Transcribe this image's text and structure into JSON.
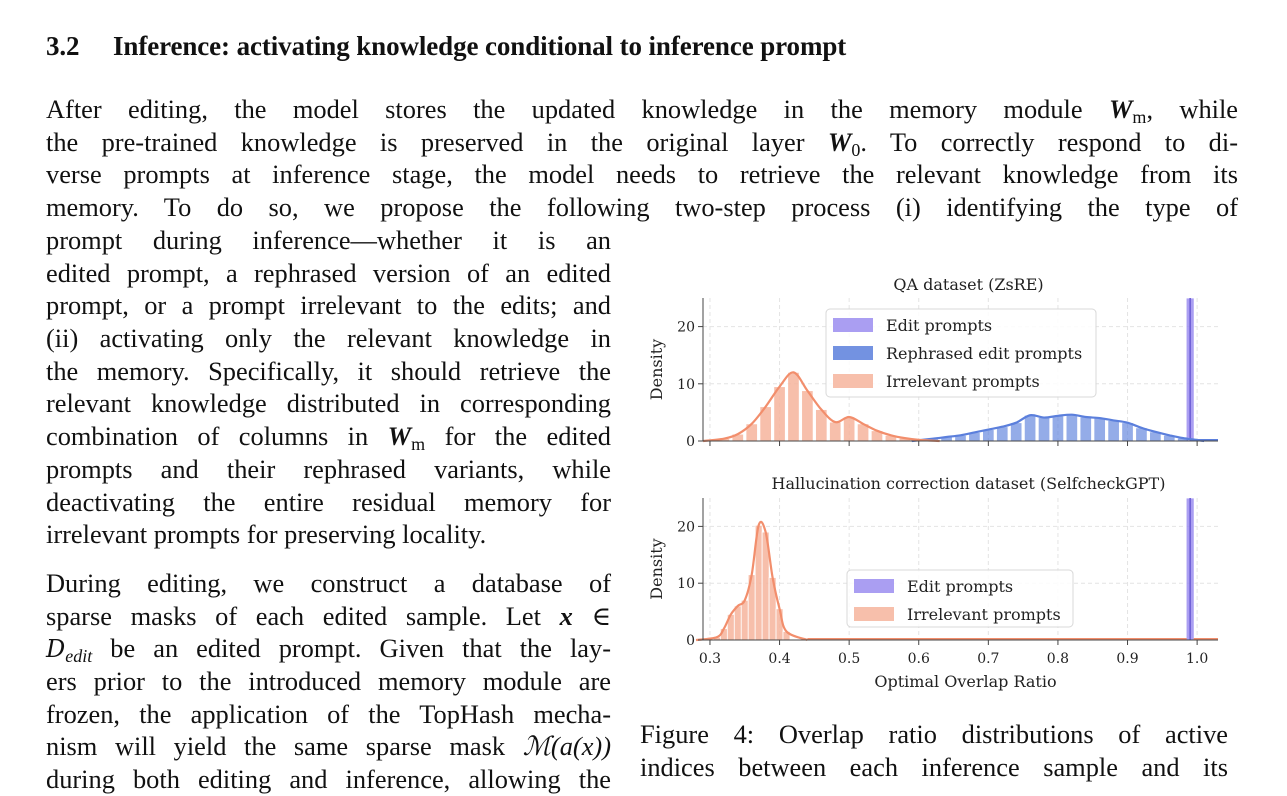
{
  "section": {
    "number": "3.2",
    "title": "Inference: activating knowledge conditional to inference prompt"
  },
  "paragraph1": {
    "l1_a": "After editing, the model stores the updated knowledge in the memory module",
    "l1_sym": "W",
    "l1_sub": "m",
    "l1_b": ", while",
    "l2_a": "the pre-trained knowledge is preserved in the original layer",
    "l2_sym": "W",
    "l2_sub": "0",
    "l2_b": ".  To correctly respond to di-",
    "l3": "verse prompts at inference stage, the model needs to retrieve the relevant knowledge from its",
    "l4": "memory.  To do so, we propose the following two-step process (i) identifying the type of"
  },
  "paragraph2": {
    "l1": "prompt during inference—whether it is an",
    "l2": "edited prompt, a rephrased version of an edited",
    "l3": "prompt, or a prompt irrelevant to the edits; and",
    "l4": "(ii) activating only the relevant knowledge in",
    "l5": "the memory. Specifically, it should retrieve the",
    "l6": "relevant knowledge distributed in corresponding",
    "l7_a": "combination of columns in",
    "l7_sym": "W",
    "l7_sub": "m",
    "l7_b": "for the edited",
    "l8": "prompts and their rephrased variants, while",
    "l9": "deactivating the entire residual memory for",
    "l10": "irrelevant prompts for preserving locality."
  },
  "paragraph3": {
    "l1": "During editing, we construct a database of",
    "l2_a": "sparse masks of each edited sample. Let",
    "l2_sym": "x",
    "l2_in": "∈",
    "l3_sym": "D",
    "l3_sub": "edit",
    "l3_b": "be an edited prompt. Given that the lay-",
    "l4": "ers prior to the introduced memory module are",
    "l5": "frozen, the application of the TopHash mecha-",
    "l6_a": "nism will yield the same sparse mask",
    "l6_math": "ℳ(a(x))",
    "l7": "during both editing and inference, allowing the"
  },
  "caption": {
    "l1": "Figure 4:  Overlap ratio distributions of active",
    "l2": "indices between each inference sample and its"
  },
  "colors": {
    "edit": "#9b8df0",
    "rephrased": "#5b7fdc",
    "irrelevant": "#f28e6c",
    "irrelevant_fill": "#f6b49c"
  },
  "chart_data": [
    {
      "type": "bar",
      "title": "QA dataset (ZsRE)",
      "xlabel": "",
      "ylabel": "Density",
      "xlim": [
        0.29,
        1.03
      ],
      "ylim": [
        0,
        25
      ],
      "yticks": [
        0,
        10,
        20
      ],
      "grid": true,
      "legend": "top-center",
      "series": [
        {
          "name": "Edit prompts",
          "x": [
            0.99
          ],
          "values": [
            25
          ]
        },
        {
          "name": "Rephrased edit prompts",
          "x": [
            0.62,
            0.64,
            0.66,
            0.68,
            0.7,
            0.72,
            0.74,
            0.76,
            0.78,
            0.8,
            0.82,
            0.84,
            0.86,
            0.88,
            0.9,
            0.92,
            0.94,
            0.96,
            0.98
          ],
          "values": [
            0.4,
            0.7,
            1.0,
            1.5,
            2.0,
            2.5,
            3.2,
            4.5,
            4.1,
            4.4,
            4.6,
            4.2,
            4.0,
            3.6,
            3.2,
            2.3,
            1.6,
            1.0,
            0.5
          ]
        },
        {
          "name": "Irrelevant prompts",
          "x": [
            0.32,
            0.34,
            0.36,
            0.38,
            0.4,
            0.42,
            0.44,
            0.46,
            0.48,
            0.5,
            0.52,
            0.54,
            0.56,
            0.58,
            0.6
          ],
          "values": [
            0.4,
            1.2,
            3.0,
            6.0,
            9.5,
            12.0,
            8.8,
            5.5,
            3.3,
            4.2,
            3.0,
            1.8,
            1.0,
            0.5,
            0.2
          ]
        }
      ]
    },
    {
      "type": "bar",
      "title": "Hallucination correction dataset (SelfcheckGPT)",
      "xlabel": "Optimal Overlap Ratio",
      "ylabel": "Density",
      "xlim": [
        0.29,
        1.03
      ],
      "ylim": [
        0,
        25
      ],
      "xticks": [
        "0.3",
        "0.4",
        "0.5",
        "0.6",
        "0.7",
        "0.8",
        "0.9",
        "1.0"
      ],
      "yticks": [
        0,
        10,
        20
      ],
      "grid": true,
      "legend": "center-right",
      "series": [
        {
          "name": "Edit prompts",
          "x": [
            0.99
          ],
          "values": [
            25
          ]
        },
        {
          "name": "Irrelevant prompts",
          "x": [
            0.31,
            0.32,
            0.33,
            0.34,
            0.35,
            0.36,
            0.37,
            0.38,
            0.39,
            0.4,
            0.41
          ],
          "values": [
            0.5,
            2.0,
            4.5,
            6.0,
            7.0,
            11.5,
            20.2,
            19.0,
            11.0,
            5.5,
            1.5
          ]
        }
      ]
    }
  ]
}
